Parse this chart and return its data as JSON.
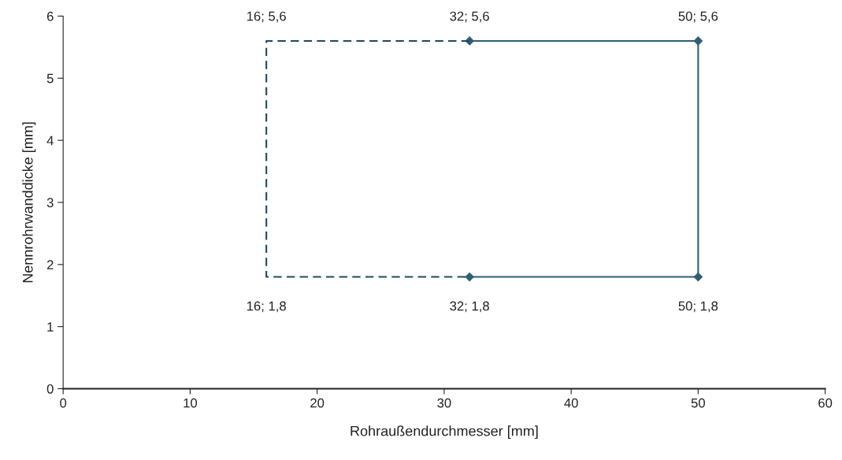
{
  "chart_data": {
    "type": "line",
    "xlabel": "Rohraußendurchmesser [mm]",
    "ylabel": "Nennrohrwanddicke [mm]",
    "xlim": [
      0,
      60
    ],
    "xticks": [
      0,
      10,
      20,
      30,
      40,
      50,
      60
    ],
    "ylim": [
      0,
      6
    ],
    "yticks": [
      0,
      1,
      2,
      3,
      4,
      5,
      6
    ],
    "grid": false,
    "legend": false,
    "series": [
      {
        "x": [
          32,
          50,
          50,
          32
        ],
        "values": [
          5.6,
          5.6,
          1.8,
          1.8
        ],
        "color": "#2f5f73",
        "marker": "diamond",
        "line_style": "solid"
      },
      {
        "x": [
          32,
          16,
          16,
          32
        ],
        "values": [
          5.6,
          5.6,
          1.8,
          1.8
        ],
        "color": "#1e4a5e",
        "marker": "none",
        "line_style": "dashed"
      }
    ],
    "annotations": [
      {
        "text": "16; 5,6",
        "x": 16,
        "y": 5.6
      },
      {
        "text": "32; 5,6",
        "x": 32,
        "y": 5.6
      },
      {
        "text": "50; 5,6",
        "x": 50,
        "y": 5.6
      },
      {
        "text": "16; 1,8",
        "x": 16,
        "y": 1.8
      },
      {
        "text": "32; 1,8",
        "x": 32,
        "y": 1.8
      },
      {
        "text": "50; 1,8",
        "x": 50,
        "y": 1.8
      }
    ]
  }
}
